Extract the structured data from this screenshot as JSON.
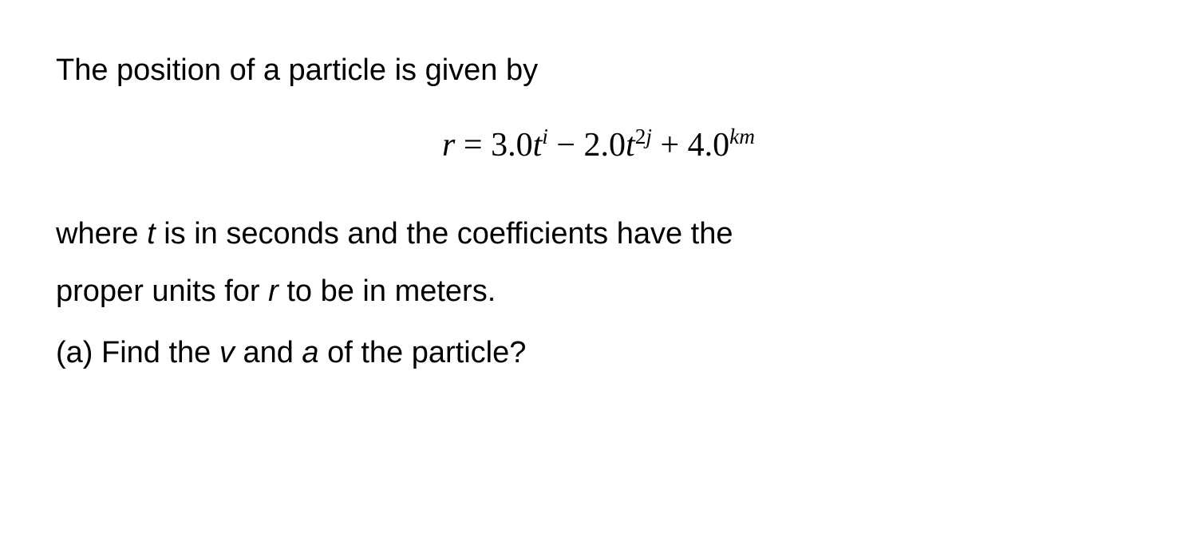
{
  "text": {
    "line1": "The position of a particle is given by",
    "line3_pre": "where ",
    "line3_t": "t ",
    "line3_post": "is in seconds and the coefficients have the",
    "line4_pre": "proper units for ",
    "line4_r": "r ",
    "line4_post": "to be in meters.",
    "line5_pre": "(a) Find the ",
    "line5_v": "v ",
    "line5_mid": "and ",
    "line5_a": "a ",
    "line5_post": "of the particle?"
  },
  "equation": {
    "r": "r",
    "eq": " = ",
    "c1": "3.0",
    "t1": "t",
    "exp1": "i",
    "minus": " − ",
    "c2": "2.0",
    "t2": "t",
    "exp2a": "2",
    "exp2b": "j",
    "plus": " + ",
    "c3": "4.0",
    "exp3": "km"
  },
  "colors": {
    "background": "#ffffff",
    "text": "#000000"
  },
  "typography": {
    "body_fontsize": 38,
    "equation_fontsize": 42,
    "body_font": "Arial",
    "equation_font": "Times New Roman"
  }
}
